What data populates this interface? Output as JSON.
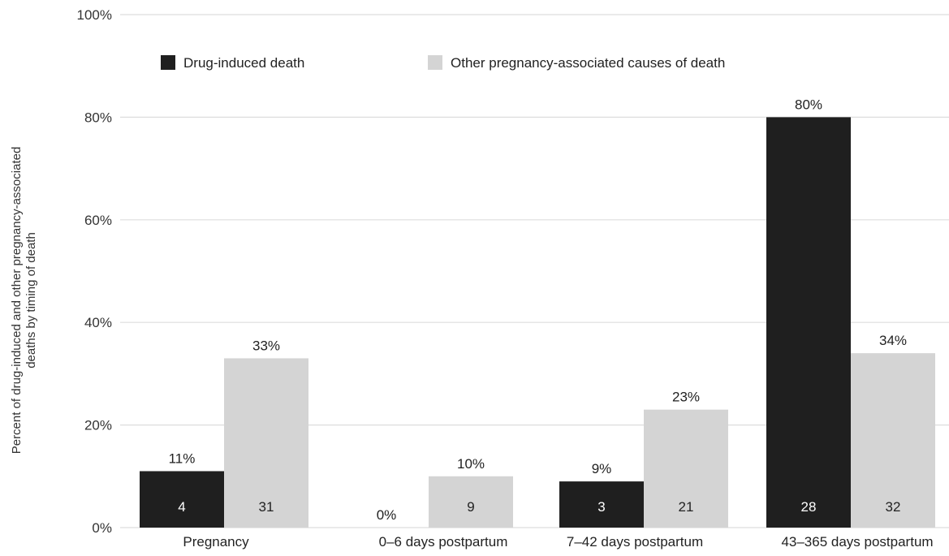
{
  "chart_data": {
    "type": "bar",
    "title": "",
    "ylabel_lines": [
      "Percent of drug-induced and other pregnancy-associated",
      "deaths by timing of death"
    ],
    "xlabel": "",
    "ylim": [
      0,
      100
    ],
    "y_ticks": [
      "0%",
      "20%",
      "40%",
      "60%",
      "80%",
      "100%"
    ],
    "y_tick_values": [
      0,
      20,
      40,
      60,
      80,
      100
    ],
    "grid": true,
    "legend_position": "top-left",
    "categories": [
      "Pregnancy",
      "0–6 days postpartum",
      "7–42 days postpartum",
      "43–365 days postpartum"
    ],
    "series": [
      {
        "name": "Drug-induced death",
        "color": "#1f1f1f",
        "label_color": "#ffffff",
        "values": [
          11,
          0,
          9,
          80
        ],
        "value_labels": [
          "11%",
          "0%",
          "9%",
          "80%"
        ],
        "counts": [
          "4",
          "",
          "3",
          "28"
        ]
      },
      {
        "name": "Other pregnancy-associated causes of death",
        "color": "#d4d4d4",
        "label_color": "#222222",
        "values": [
          33,
          10,
          23,
          34
        ],
        "value_labels": [
          "33%",
          "10%",
          "23%",
          "34%"
        ],
        "counts": [
          "31",
          "9",
          "21",
          "32"
        ]
      }
    ]
  }
}
